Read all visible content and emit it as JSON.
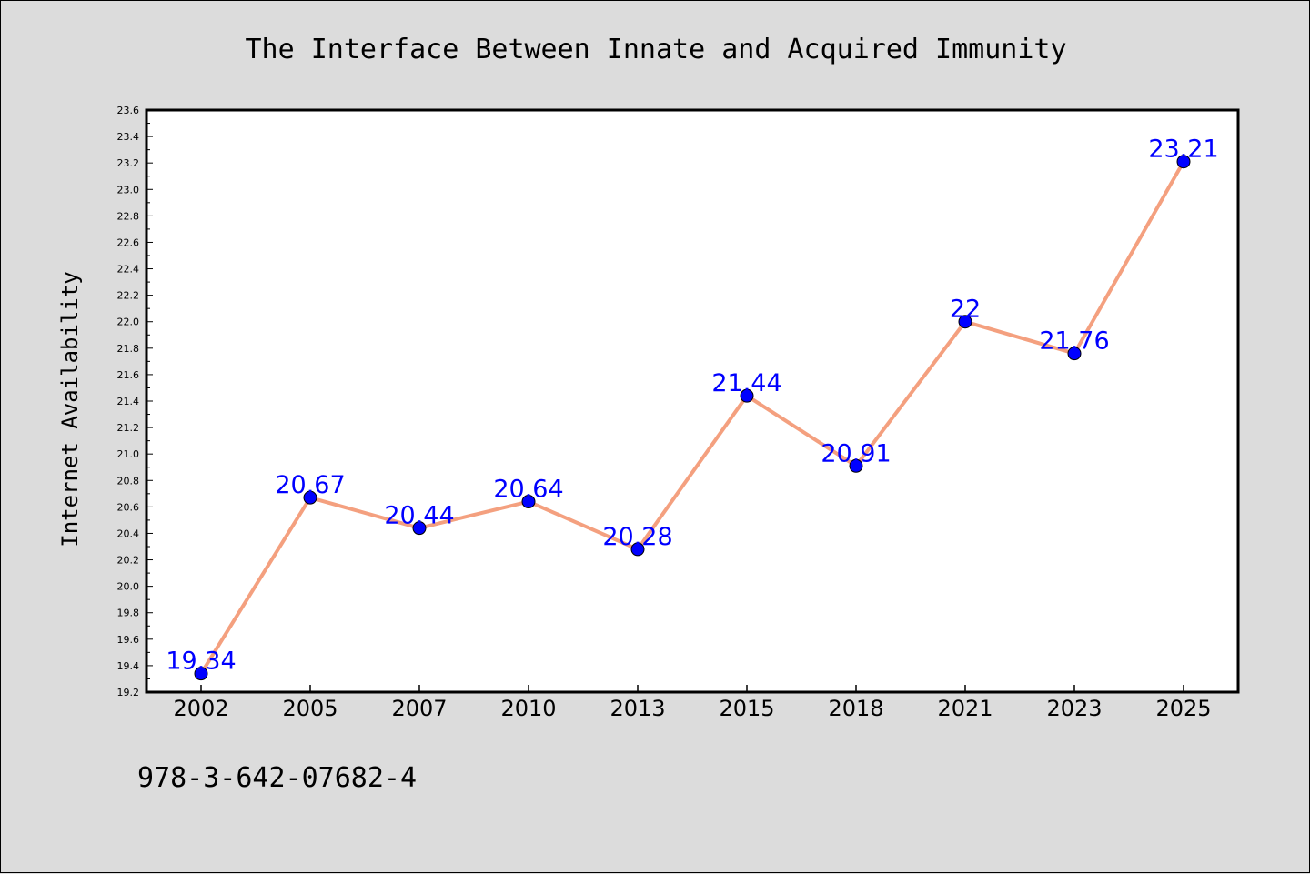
{
  "chart_data": {
    "type": "line",
    "title": "The Interface Between Innate and Acquired Immunity",
    "xlabel": "",
    "ylabel": "Internet Availability",
    "categories": [
      "2002",
      "2005",
      "2007",
      "2010",
      "2013",
      "2015",
      "2018",
      "2021",
      "2023",
      "2025"
    ],
    "series": [
      {
        "values": [
          19.34,
          20.67,
          20.44,
          20.64,
          20.28,
          21.44,
          20.91,
          22,
          21.76,
          23.21
        ]
      }
    ],
    "data_labels": [
      "19.34",
      "20.67",
      "20.44",
      "20.64",
      "20.28",
      "21.44",
      "20.91",
      "22",
      "21.76",
      "23.21"
    ],
    "ylim": [
      19.2,
      23.6
    ],
    "yticks": [
      "19.2",
      "19.4",
      "19.6",
      "19.8",
      "20.0",
      "20.2",
      "20.4",
      "20.6",
      "20.8",
      "21.0",
      "21.2",
      "21.4",
      "21.6",
      "21.8",
      "22.0",
      "22.2",
      "22.4",
      "22.6",
      "22.8",
      "23.0",
      "23.2",
      "23.4",
      "23.6"
    ],
    "grid": false,
    "legend": "none",
    "colors": {
      "line": "#f4a07f",
      "marker": "#0000ff",
      "label": "#0000ff",
      "background": "#dcdcdc",
      "plot_background": "#ffffff"
    }
  },
  "footer": {
    "isbn": "978-3-642-07682-4"
  }
}
